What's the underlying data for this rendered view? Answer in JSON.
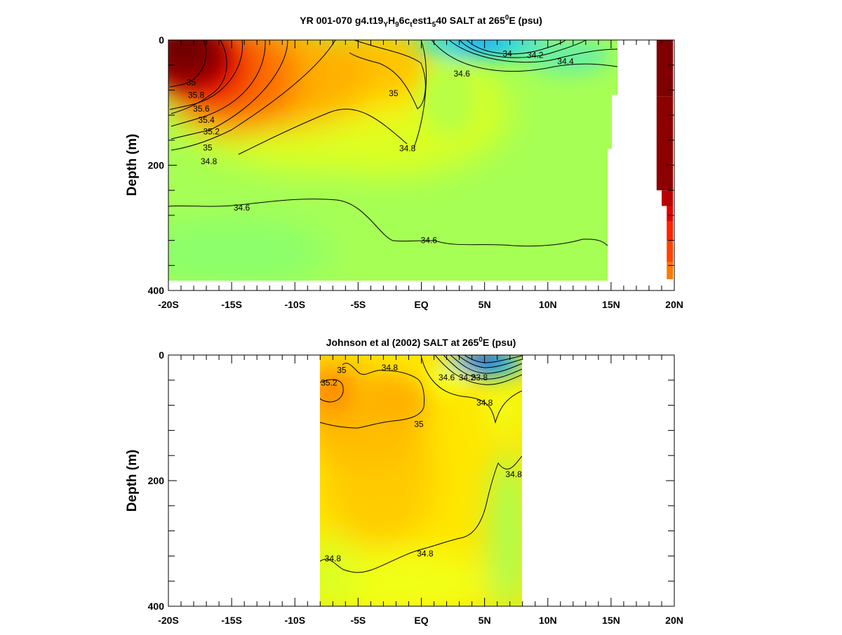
{
  "chart_data": [
    {
      "type": "heatmap",
      "title": "YR 001-070 g4.t19_Y_H_9_6c_t_est1_5_40 SALT at 265^0E (psu)",
      "title_parts": {
        "pre": "YR 001-070 g4.t19",
        "s1": "Y",
        "m1": "H",
        "s2": "9",
        "m2": "6c",
        "s3": "t",
        "m3": "est1",
        "s4": "5",
        "m4": "40 SALT at 265",
        "sup": "0",
        "post": "E (psu)"
      },
      "ylabel": "Depth (m)",
      "xlim": [
        -20,
        20
      ],
      "ylim": [
        400,
        0
      ],
      "x_ticks": [
        "-20S",
        "-15S",
        "-10S",
        "-5S",
        "EQ",
        "5N",
        "10N",
        "15N",
        "20N"
      ],
      "y_ticks": [
        "0",
        "200",
        "400"
      ],
      "grid": false,
      "contour_labels": [
        {
          "text": "35",
          "x": -18.2,
          "y": 68
        },
        {
          "text": "35.8",
          "x": -17.8,
          "y": 88
        },
        {
          "text": "35.6",
          "x": -17.4,
          "y": 110
        },
        {
          "text": "35.4",
          "x": -17.0,
          "y": 128
        },
        {
          "text": "35.2",
          "x": -16.6,
          "y": 146
        },
        {
          "text": "35",
          "x": -16.9,
          "y": 172
        },
        {
          "text": "34.8",
          "x": -16.8,
          "y": 194
        },
        {
          "text": "34.6",
          "x": -14.2,
          "y": 268
        },
        {
          "text": "35",
          "x": -2.2,
          "y": 85
        },
        {
          "text": "34.8",
          "x": -1.1,
          "y": 173
        },
        {
          "text": "34.6",
          "x": 0.6,
          "y": 320
        },
        {
          "text": "34.6",
          "x": 3.2,
          "y": 54
        },
        {
          "text": "34",
          "x": 6.8,
          "y": 22
        },
        {
          "text": "34.2",
          "x": 9.0,
          "y": 24
        },
        {
          "text": "34.4",
          "x": 11.4,
          "y": 34
        }
      ],
      "colorbar_segments": [
        {
          "from": 0,
          "to": 90,
          "color": "#7f0000"
        },
        {
          "from": 90,
          "to": 240,
          "color": "#8c0000"
        },
        {
          "from": 240,
          "to": 265,
          "color": "#b80000"
        },
        {
          "from": 265,
          "to": 290,
          "color": "#e00000"
        },
        {
          "from": 290,
          "to": 320,
          "color": "#ff2200"
        },
        {
          "from": 320,
          "to": 355,
          "color": "#ff4400"
        },
        {
          "from": 355,
          "to": 382,
          "color": "#ff7a00"
        }
      ]
    },
    {
      "type": "heatmap",
      "title": "Johnson et al (2002) SALT at 265^0E (psu)",
      "title_parts": {
        "pre": "Johnson et al (2002) SALT at 265",
        "sup": "0",
        "post": "E (psu)"
      },
      "ylabel": "Depth (m)",
      "xlim": [
        -20,
        20
      ],
      "ylim": [
        400,
        0
      ],
      "data_xlim": [
        -8,
        8
      ],
      "x_ticks": [
        "-20S",
        "-15S",
        "-10S",
        "-5S",
        "EQ",
        "5N",
        "10N",
        "15N",
        "20N"
      ],
      "y_ticks": [
        "0",
        "200",
        "400"
      ],
      "grid": false,
      "contour_labels": [
        {
          "text": "35",
          "x": -6.3,
          "y": 24
        },
        {
          "text": "35.2",
          "x": -7.3,
          "y": 44
        },
        {
          "text": "34.8",
          "x": -2.5,
          "y": 20
        },
        {
          "text": "34.6",
          "x": 2.0,
          "y": 36
        },
        {
          "text": "34.2",
          "x": 3.6,
          "y": 36
        },
        {
          "text": "33.8",
          "x": 4.6,
          "y": 36
        },
        {
          "text": "34.8",
          "x": 5.0,
          "y": 76
        },
        {
          "text": "35",
          "x": -0.2,
          "y": 110
        },
        {
          "text": "34.8",
          "x": 7.3,
          "y": 190
        },
        {
          "text": "34.8",
          "x": -7.0,
          "y": 324
        },
        {
          "text": "34.8",
          "x": 0.3,
          "y": 316
        }
      ]
    }
  ]
}
